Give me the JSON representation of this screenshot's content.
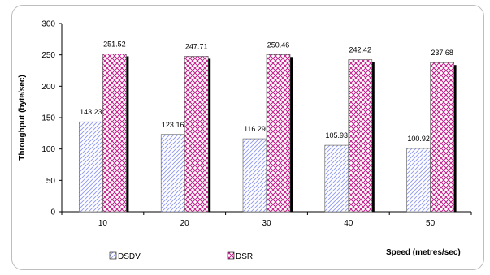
{
  "chart_data": {
    "type": "bar",
    "categories": [
      "10",
      "20",
      "30",
      "40",
      "50"
    ],
    "series": [
      {
        "name": "DSDV",
        "values": [
          143.23,
          123.16,
          116.29,
          105.93,
          100.92
        ],
        "labels": [
          "143.23",
          "123.16",
          "116.29",
          "105.93",
          "100.92"
        ],
        "color": "#9aa6ff",
        "pattern": "diagonal-hatch"
      },
      {
        "name": "DSR",
        "values": [
          251.52,
          247.71,
          250.46,
          242.42,
          237.68
        ],
        "labels": [
          "251.52",
          "247.71",
          "250.46",
          "242.42",
          "237.68"
        ],
        "color": "#cc3399",
        "pattern": "diamond-hatch"
      }
    ],
    "xlabel": "Speed (metres/sec)",
    "ylabel": "Throughput (byte/sec)",
    "ylim": [
      0,
      300
    ],
    "yticks": [
      "0",
      "50",
      "100",
      "150",
      "200",
      "250",
      "300"
    ],
    "grid": false,
    "legend_position": "bottom-left"
  }
}
